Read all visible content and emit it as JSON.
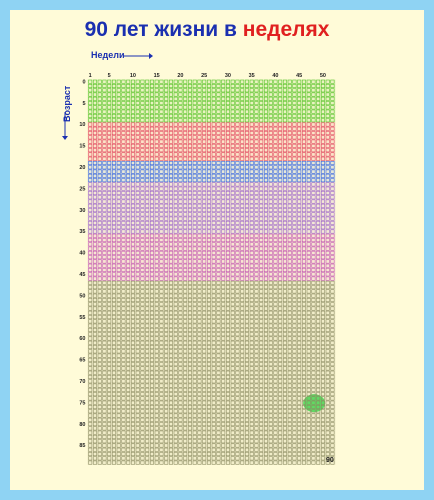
{
  "title": {
    "part1": "90 лет жизни в ",
    "part2": "неделях"
  },
  "axis": {
    "weeks_label": "Недели",
    "age_label": "Возраст",
    "week_ticks": [
      "1",
      "5",
      "10",
      "15",
      "20",
      "25",
      "30",
      "35",
      "40",
      "45",
      "50"
    ],
    "age_ticks": [
      "0",
      "5",
      "10",
      "15",
      "20",
      "25",
      "30",
      "35",
      "40",
      "45",
      "50",
      "55",
      "60",
      "65",
      "70",
      "75",
      "80",
      "85"
    ],
    "end_label": "90"
  },
  "grid": {
    "weeks": 52,
    "years": 90
  },
  "colors": {
    "background": "#8fd3f3",
    "card": "#fffbd8",
    "childhood": "#4fc020",
    "school": "#e0405a",
    "university": "#3060e0",
    "career": "#9a60c8",
    "mid_life": "#c050b0",
    "later_life": "#8a8a60",
    "highlight": "#3cd44a"
  },
  "bands": [
    {
      "from": 0,
      "to": 9,
      "color": "#4fc020"
    },
    {
      "from": 10,
      "to": 18,
      "color": "#e0405a"
    },
    {
      "from": 19,
      "to": 23,
      "color": "#3060e0"
    },
    {
      "from": 24,
      "to": 35,
      "color": "#9a60c8"
    },
    {
      "from": 36,
      "to": 46,
      "color": "#c050b0"
    },
    {
      "from": 47,
      "to": 89,
      "color": "#8a8a60"
    }
  ]
}
